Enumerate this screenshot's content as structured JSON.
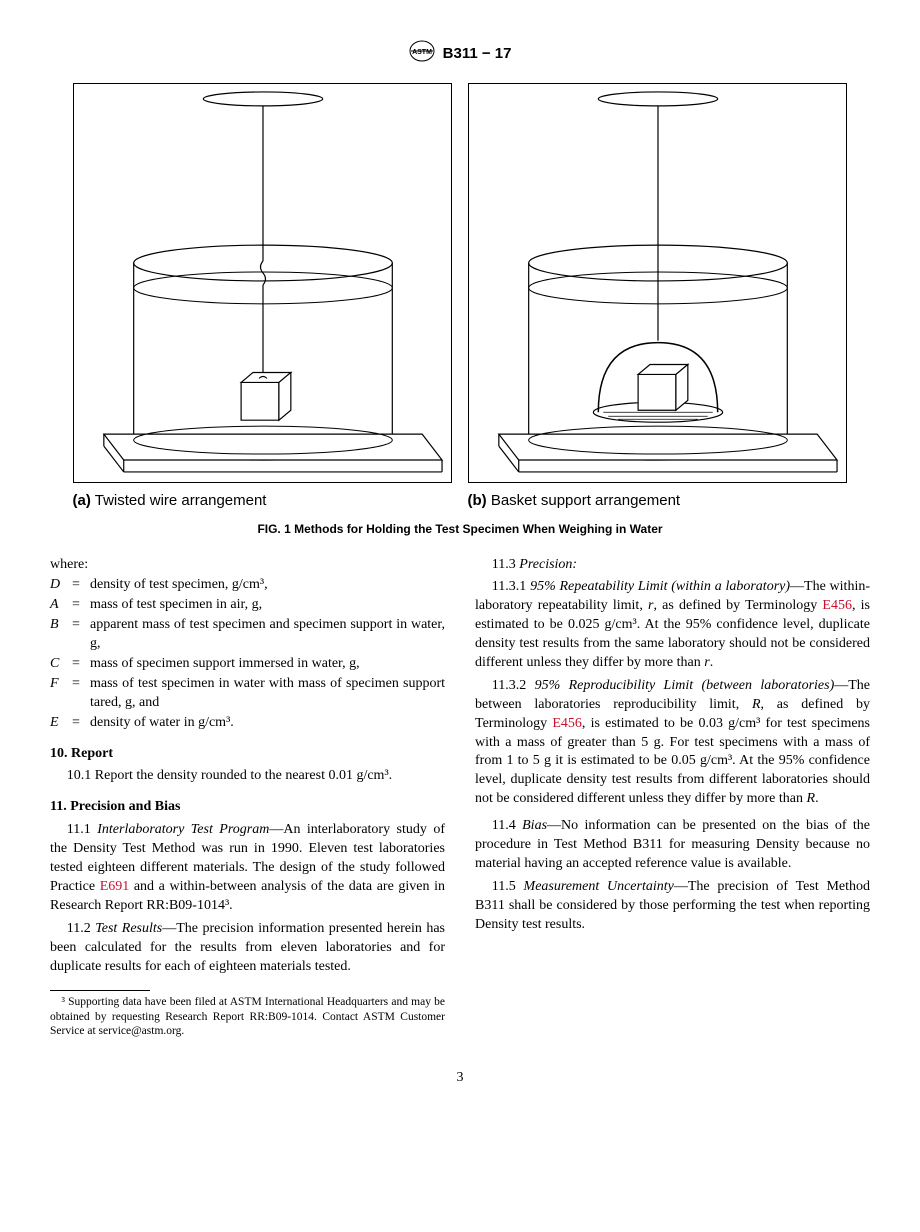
{
  "header": {
    "designation": "B311 − 17"
  },
  "figure": {
    "caption_a_bold": "(a)",
    "caption_a_text": " Twisted wire arrangement",
    "caption_b_bold": "(b)",
    "caption_b_text": " Basket support arrangement",
    "main_caption": "FIG. 1  Methods for Holding the Test Specimen When Weighing in Water"
  },
  "where": {
    "label": "where:",
    "defs": [
      {
        "sym": "D",
        "txt": "density of test specimen, g/cm³,"
      },
      {
        "sym": "A",
        "txt": "mass of test specimen in air, g,"
      },
      {
        "sym": "B",
        "txt": "apparent mass of test specimen and specimen support in water, g,"
      },
      {
        "sym": "C",
        "txt": "mass of specimen support immersed in water, g,"
      },
      {
        "sym": "F",
        "txt": "mass of test specimen in water with mass of specimen support tared, g, and"
      },
      {
        "sym": "E",
        "txt": "density of water in g/cm³."
      }
    ]
  },
  "s10": {
    "heading": "10.  Report",
    "p1": "10.1 Report the density rounded to the nearest 0.01 g/cm³."
  },
  "s11": {
    "heading": "11.  Precision and Bias",
    "p1_lead": "11.1 ",
    "p1_ital": "Interlaboratory Test Program",
    "p1_a": "—An interlaboratory study of the Density Test Method was run in 1990. Eleven test laboratories tested eighteen different materials. The design of the study followed Practice ",
    "p1_link": "E691",
    "p1_b": " and a within-between analysis of the data are given in Research Report RR:B09-1014³.",
    "p2_lead": "11.2 ",
    "p2_ital": "Test Results",
    "p2_body": "—The precision information presented herein has been calculated for the results from eleven laboratories and for duplicate results for each of eighteen materials tested.",
    "p3_lead": "11.3 ",
    "p3_ital": "Precision:",
    "p31_lead": "11.3.1 ",
    "p31_ital": "95% Repeatability Limit (within a laboratory)",
    "p31_a": "—The within-laboratory repeatability limit, ",
    "p31_r1": "r",
    "p31_b": ", as defined by Terminology ",
    "p31_link": "E456",
    "p31_c": ", is estimated to be 0.025 g/cm³. At the 95% confidence level, duplicate density test results from the same laboratory should not be considered different unless they differ by more than ",
    "p31_r2": "r",
    "p31_d": ".",
    "p32_lead": "11.3.2 ",
    "p32_ital": "95% Reproducibility Limit (between laboratories)",
    "p32_a": "—The between laboratories reproducibility limit, ",
    "p32_R1": "R",
    "p32_b": ", as defined by Terminology ",
    "p32_link": "E456",
    "p32_c": ", is estimated to be 0.03 g/cm³ for test specimens with a mass of greater than 5 g. For test specimens with a mass of from 1 to 5 g it is estimated to be 0.05 g/cm³. At the 95% confidence level, duplicate density test results from different laboratories should not be considered different unless they differ by more than ",
    "p32_R2": "R",
    "p32_d": ".",
    "p4_lead": "11.4 ",
    "p4_ital": "Bias",
    "p4_body": "—No information can be presented on the bias of the procedure in Test Method B311 for measuring Density because no material having an accepted reference value is available.",
    "p5_lead": "11.5 ",
    "p5_ital": "Measurement Uncertainty",
    "p5_body": "—The precision of Test Method B311 shall be considered by those performing the test when reporting Density test results."
  },
  "footnote": "³ Supporting data have been filed at ASTM International Headquarters and may be obtained by requesting Research Report RR:B09-1014. Contact ASTM Customer Service at service@astm.org.",
  "pagenum": "3"
}
